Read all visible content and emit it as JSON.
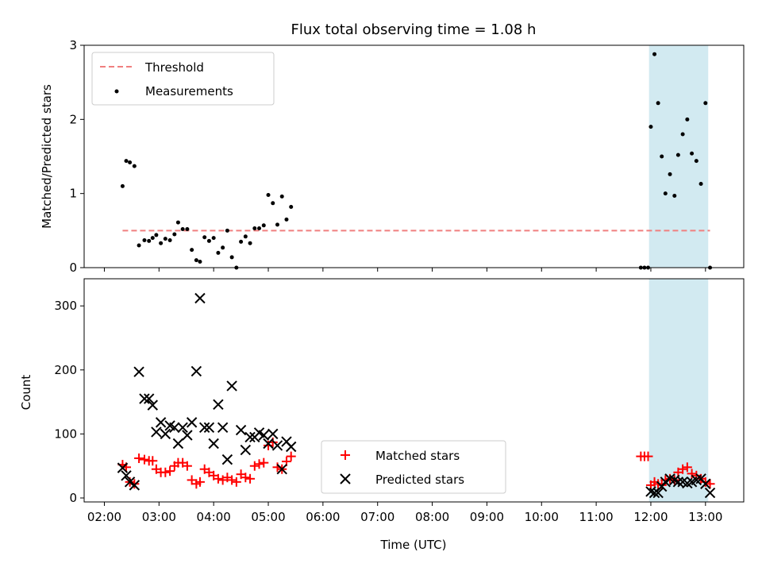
{
  "chart_data": [
    {
      "type": "scatter",
      "title": "Flux total observing time = 1.08 h",
      "xlabel": "",
      "ylabel": "Matched/Predicted stars",
      "ylim": [
        0,
        3
      ],
      "yticks": [
        "0",
        "1",
        "2",
        "3"
      ],
      "xlim_hours": [
        1.63,
        13.7
      ],
      "legend_position": "top-left",
      "threshold": {
        "name": "Threshold",
        "value": 0.5,
        "x_range": [
          "02:20",
          "13:05"
        ],
        "color": "#f07f7f"
      },
      "shaded_region": {
        "x_range": [
          "11:58",
          "13:03"
        ],
        "color": "#add8e6"
      },
      "series": [
        {
          "name": "Measurements",
          "color": "#000000",
          "points": [
            [
              "02:20",
              1.1
            ],
            [
              "02:24",
              1.44
            ],
            [
              "02:28",
              1.42
            ],
            [
              "02:33",
              1.37
            ],
            [
              "02:38",
              0.3
            ],
            [
              "02:44",
              0.37
            ],
            [
              "02:49",
              0.36
            ],
            [
              "02:53",
              0.4
            ],
            [
              "02:57",
              0.44
            ],
            [
              "03:02",
              0.33
            ],
            [
              "03:07",
              0.39
            ],
            [
              "03:12",
              0.37
            ],
            [
              "03:17",
              0.45
            ],
            [
              "03:21",
              0.61
            ],
            [
              "03:26",
              0.52
            ],
            [
              "03:31",
              0.52
            ],
            [
              "03:36",
              0.24
            ],
            [
              "03:41",
              0.1
            ],
            [
              "03:45",
              0.08
            ],
            [
              "03:50",
              0.41
            ],
            [
              "03:55",
              0.36
            ],
            [
              "04:00",
              0.4
            ],
            [
              "04:05",
              0.2
            ],
            [
              "04:10",
              0.27
            ],
            [
              "04:15",
              0.5
            ],
            [
              "04:20",
              0.14
            ],
            [
              "04:25",
              0.0
            ],
            [
              "04:30",
              0.35
            ],
            [
              "04:35",
              0.42
            ],
            [
              "04:40",
              0.33
            ],
            [
              "04:45",
              0.53
            ],
            [
              "04:50",
              0.53
            ],
            [
              "04:55",
              0.57
            ],
            [
              "05:00",
              0.98
            ],
            [
              "05:05",
              0.87
            ],
            [
              "05:10",
              0.58
            ],
            [
              "05:15",
              0.96
            ],
            [
              "05:20",
              0.65
            ],
            [
              "05:25",
              0.82
            ],
            [
              "11:49",
              0.0
            ],
            [
              "11:53",
              0.0
            ],
            [
              "11:57",
              0.0
            ],
            [
              "12:00",
              1.9
            ],
            [
              "12:04",
              2.88
            ],
            [
              "12:08",
              2.22
            ],
            [
              "12:12",
              1.5
            ],
            [
              "12:16",
              1.0
            ],
            [
              "12:21",
              1.26
            ],
            [
              "12:26",
              0.97
            ],
            [
              "12:30",
              1.52
            ],
            [
              "12:35",
              1.8
            ],
            [
              "12:40",
              2.0
            ],
            [
              "12:45",
              1.54
            ],
            [
              "12:50",
              1.44
            ],
            [
              "12:55",
              1.13
            ],
            [
              "13:00",
              2.22
            ],
            [
              "13:05",
              0.0
            ]
          ]
        }
      ]
    },
    {
      "type": "scatter",
      "title": "",
      "xlabel": "Time (UTC)",
      "ylabel": "Count",
      "ylim": [
        0,
        330
      ],
      "yticks": [
        "0",
        "100",
        "200",
        "300"
      ],
      "xticks": [
        "02:00",
        "03:00",
        "04:00",
        "05:00",
        "06:00",
        "07:00",
        "08:00",
        "09:00",
        "10:00",
        "11:00",
        "12:00",
        "13:00"
      ],
      "xlim_hours": [
        1.63,
        13.7
      ],
      "legend_position": "lower-center",
      "shaded_region": {
        "x_range": [
          "11:58",
          "13:03"
        ],
        "color": "#add8e6"
      },
      "series": [
        {
          "name": "Matched stars",
          "marker": "plus",
          "color": "#ff0000",
          "points": [
            [
              "02:20",
              52
            ],
            [
              "02:24",
              48
            ],
            [
              "02:28",
              25
            ],
            [
              "02:33",
              22
            ],
            [
              "02:38",
              62
            ],
            [
              "02:44",
              60
            ],
            [
              "02:49",
              58
            ],
            [
              "02:53",
              58
            ],
            [
              "02:57",
              45
            ],
            [
              "03:02",
              40
            ],
            [
              "03:07",
              40
            ],
            [
              "03:12",
              42
            ],
            [
              "03:17",
              50
            ],
            [
              "03:21",
              55
            ],
            [
              "03:26",
              55
            ],
            [
              "03:31",
              50
            ],
            [
              "03:36",
              28
            ],
            [
              "03:41",
              22
            ],
            [
              "03:45",
              25
            ],
            [
              "03:50",
              45
            ],
            [
              "03:55",
              40
            ],
            [
              "04:00",
              35
            ],
            [
              "04:05",
              30
            ],
            [
              "04:10",
              28
            ],
            [
              "04:15",
              32
            ],
            [
              "04:20",
              28
            ],
            [
              "04:25",
              25
            ],
            [
              "04:30",
              37
            ],
            [
              "04:35",
              32
            ],
            [
              "04:40",
              30
            ],
            [
              "04:45",
              50
            ],
            [
              "04:50",
              53
            ],
            [
              "04:55",
              55
            ],
            [
              "05:00",
              82
            ],
            [
              "05:05",
              87
            ],
            [
              "05:10",
              48
            ],
            [
              "05:15",
              45
            ],
            [
              "05:20",
              57
            ],
            [
              "05:25",
              65
            ],
            [
              "11:49",
              65
            ],
            [
              "11:53",
              65
            ],
            [
              "11:57",
              65
            ],
            [
              "12:00",
              20
            ],
            [
              "12:04",
              25
            ],
            [
              "12:08",
              22
            ],
            [
              "12:12",
              20
            ],
            [
              "12:16",
              28
            ],
            [
              "12:21",
              30
            ],
            [
              "12:26",
              28
            ],
            [
              "12:30",
              40
            ],
            [
              "12:35",
              45
            ],
            [
              "12:40",
              48
            ],
            [
              "12:45",
              38
            ],
            [
              "12:50",
              35
            ],
            [
              "12:55",
              30
            ],
            [
              "13:00",
              25
            ],
            [
              "13:05",
              22
            ]
          ]
        },
        {
          "name": "Predicted stars",
          "marker": "x",
          "color": "#000000",
          "points": [
            [
              "02:20",
              47
            ],
            [
              "02:24",
              35
            ],
            [
              "02:28",
              25
            ],
            [
              "02:33",
              20
            ],
            [
              "02:38",
              197
            ],
            [
              "02:44",
              155
            ],
            [
              "02:49",
              155
            ],
            [
              "02:53",
              145
            ],
            [
              "02:57",
              103
            ],
            [
              "03:02",
              118
            ],
            [
              "03:07",
              100
            ],
            [
              "03:12",
              113
            ],
            [
              "03:17",
              110
            ],
            [
              "03:21",
              85
            ],
            [
              "03:26",
              110
            ],
            [
              "03:31",
              98
            ],
            [
              "03:36",
              118
            ],
            [
              "03:41",
              198
            ],
            [
              "03:45",
              312
            ],
            [
              "03:50",
              110
            ],
            [
              "03:55",
              110
            ],
            [
              "04:00",
              85
            ],
            [
              "04:05",
              146
            ],
            [
              "04:10",
              110
            ],
            [
              "04:15",
              60
            ],
            [
              "04:20",
              175
            ],
            [
              "04:30",
              106
            ],
            [
              "04:35",
              75
            ],
            [
              "04:40",
              95
            ],
            [
              "04:45",
              95
            ],
            [
              "04:50",
              102
            ],
            [
              "04:55",
              98
            ],
            [
              "05:00",
              85
            ],
            [
              "05:05",
              100
            ],
            [
              "05:10",
              82
            ],
            [
              "05:15",
              45
            ],
            [
              "05:20",
              88
            ],
            [
              "05:25",
              80
            ],
            [
              "12:00",
              10
            ],
            [
              "12:04",
              8
            ],
            [
              "12:08",
              8
            ],
            [
              "12:12",
              18
            ],
            [
              "12:16",
              25
            ],
            [
              "12:21",
              30
            ],
            [
              "12:26",
              28
            ],
            [
              "12:30",
              25
            ],
            [
              "12:35",
              25
            ],
            [
              "12:40",
              23
            ],
            [
              "12:45",
              25
            ],
            [
              "12:50",
              28
            ],
            [
              "12:55",
              30
            ],
            [
              "13:00",
              22
            ],
            [
              "13:05",
              8
            ]
          ]
        }
      ]
    }
  ]
}
